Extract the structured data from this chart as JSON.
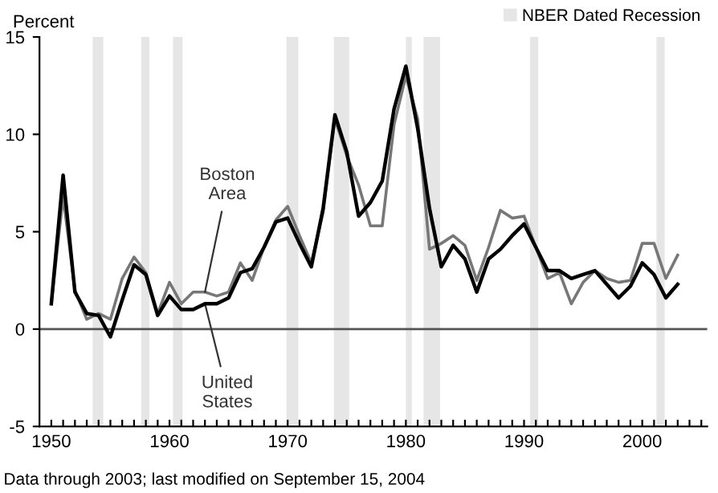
{
  "chart_data": {
    "type": "line",
    "ylabel": "Percent",
    "x": [
      1950,
      1951,
      1952,
      1953,
      1954,
      1955,
      1956,
      1957,
      1958,
      1959,
      1960,
      1961,
      1962,
      1963,
      1964,
      1965,
      1966,
      1967,
      1968,
      1969,
      1970,
      1971,
      1972,
      1973,
      1974,
      1975,
      1976,
      1977,
      1978,
      1979,
      1980,
      1981,
      1982,
      1983,
      1984,
      1985,
      1986,
      1987,
      1988,
      1989,
      1990,
      1991,
      1992,
      1993,
      1994,
      1995,
      1996,
      1997,
      1998,
      1999,
      2000,
      2001,
      2002,
      2003
    ],
    "series": [
      {
        "color": "#777777",
        "values": [
          1.3,
          6.8,
          2.0,
          0.5,
          0.8,
          0.5,
          2.6,
          3.7,
          2.9,
          0.8,
          2.4,
          1.3,
          1.9,
          1.9,
          1.7,
          1.9,
          3.4,
          2.5,
          4.2,
          5.6,
          6.3,
          4.8,
          3.4,
          6.0,
          10.8,
          8.9,
          7.4,
          5.3,
          5.3,
          10.5,
          13.0,
          10.8,
          4.1,
          4.4,
          4.8,
          4.3,
          2.5,
          4.2,
          6.1,
          5.7,
          5.8,
          4.2,
          2.6,
          2.9,
          1.3,
          2.4,
          3.0,
          2.6,
          2.4,
          2.5,
          4.4,
          4.4,
          2.6,
          3.8
        ]
      },
      {
        "color": "#000000",
        "values": [
          1.3,
          7.9,
          1.9,
          0.8,
          0.7,
          -0.4,
          1.5,
          3.3,
          2.8,
          0.7,
          1.7,
          1.0,
          1.0,
          1.3,
          1.3,
          1.6,
          2.9,
          3.1,
          4.2,
          5.5,
          5.7,
          4.4,
          3.2,
          6.2,
          11.0,
          9.1,
          5.8,
          6.5,
          7.6,
          11.3,
          13.5,
          10.3,
          6.2,
          3.2,
          4.3,
          3.6,
          1.9,
          3.6,
          4.1,
          4.8,
          5.4,
          4.2,
          3.0,
          3.0,
          2.6,
          2.8,
          3.0,
          2.3,
          1.6,
          2.2,
          3.4,
          2.8,
          1.6,
          2.3
        ]
      }
    ],
    "xlim": [
      1949,
      2005.5
    ],
    "xticks": [
      1950,
      {
        "value": 1951,
        "label": null
      },
      {
        "value": 1952,
        "label": null
      },
      {
        "value": 1953,
        "label": null
      },
      {
        "value": 1954,
        "label": null
      },
      {
        "value": 1955,
        "label": null
      },
      {
        "value": 1956,
        "label": null
      },
      {
        "value": 1957,
        "label": null
      },
      {
        "value": 1958,
        "label": null
      },
      {
        "value": 1959,
        "label": null
      },
      1960,
      {
        "value": 1961,
        "label": null
      },
      {
        "value": 1962,
        "label": null
      },
      {
        "value": 1963,
        "label": null
      },
      {
        "value": 1964,
        "label": null
      },
      {
        "value": 1965,
        "label": null
      },
      {
        "value": 1966,
        "label": null
      },
      {
        "value": 1967,
        "label": null
      },
      {
        "value": 1968,
        "label": null
      },
      {
        "value": 1969,
        "label": null
      },
      1970,
      {
        "value": 1971,
        "label": null
      },
      {
        "value": 1972,
        "label": null
      },
      {
        "value": 1973,
        "label": null
      },
      {
        "value": 1974,
        "label": null
      },
      {
        "value": 1975,
        "label": null
      },
      {
        "value": 1976,
        "label": null
      },
      {
        "value": 1977,
        "label": null
      },
      {
        "value": 1978,
        "label": null
      },
      {
        "value": 1979,
        "label": null
      },
      1980,
      {
        "value": 1981,
        "label": null
      },
      {
        "value": 1982,
        "label": null
      },
      {
        "value": 1983,
        "label": null
      },
      {
        "value": 1984,
        "label": null
      },
      {
        "value": 1985,
        "label": null
      },
      {
        "value": 1986,
        "label": null
      },
      {
        "value": 1987,
        "label": null
      },
      {
        "value": 1988,
        "label": null
      },
      {
        "value": 1989,
        "label": null
      },
      1990,
      {
        "value": 1991,
        "label": null
      },
      {
        "value": 1992,
        "label": null
      },
      {
        "value": 1993,
        "label": null
      },
      {
        "value": 1994,
        "label": null
      },
      {
        "value": 1995,
        "label": null
      },
      {
        "value": 1996,
        "label": null
      },
      {
        "value": 1997,
        "label": null
      },
      {
        "value": 1998,
        "label": null
      },
      {
        "value": 1999,
        "label": null
      },
      2000,
      {
        "value": 2001,
        "label": null
      },
      {
        "value": 2002,
        "label": null
      },
      {
        "value": 2003,
        "label": null
      },
      {
        "value": 2004,
        "label": null
      },
      {
        "value": 2005,
        "label": null
      }
    ],
    "ylim": [
      -5,
      15
    ],
    "yticks": [
      -5,
      0,
      5,
      10,
      15
    ],
    "ref_lines": [
      {
        "axis": "y",
        "value": 0,
        "color": "#555555"
      }
    ],
    "bands": [
      {
        "axis": "x",
        "from": 1953.5,
        "to": 1954.4,
        "label": "NBER Dated Recession",
        "color": "#e6e6e6"
      },
      {
        "axis": "x",
        "from": 1957.6,
        "to": 1958.3,
        "color": "#e6e6e6"
      },
      {
        "axis": "x",
        "from": 1960.3,
        "to": 1961.1,
        "color": "#e6e6e6"
      },
      {
        "axis": "x",
        "from": 1969.9,
        "to": 1970.9,
        "color": "#e6e6e6"
      },
      {
        "axis": "x",
        "from": 1973.9,
        "to": 1975.2,
        "color": "#e6e6e6"
      },
      {
        "axis": "x",
        "from": 1980.0,
        "to": 1980.5,
        "color": "#e6e6e6"
      },
      {
        "axis": "x",
        "from": 1981.5,
        "to": 1982.9,
        "color": "#e6e6e6"
      },
      {
        "axis": "x",
        "from": 1990.5,
        "to": 1991.2,
        "color": "#e6e6e6"
      },
      {
        "axis": "x",
        "from": 2001.2,
        "to": 2001.9,
        "color": "#e6e6e6"
      }
    ],
    "annotations": [
      {
        "text": "Boston\nArea",
        "x": 1963,
        "y": 1.9
      },
      {
        "text": "United\nStates",
        "x": 1963,
        "y": 1.3
      },
      "Data through 2003; last modified on September 15, 2004"
    ],
    "legend": "top right",
    "grid": false,
    "marker": "none",
    "line_style": "solid"
  }
}
